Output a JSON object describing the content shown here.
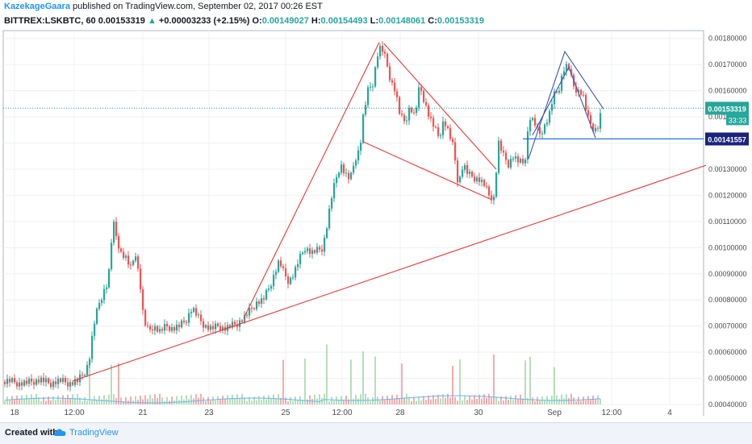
{
  "header": {
    "author": "KazekageGaara",
    "published": "published on TradingView.com, September 02, 2017 00:26 EST",
    "symbol": "BITTREX:LSKBTC, 60",
    "last": "0.00153319",
    "arrow": "▲",
    "change": "+0.00003233 (+2.15%)",
    "o_label": "O:",
    "o": "0.00149027",
    "h_label": "H:",
    "h": "0.00154493",
    "l_label": "L:",
    "l": "0.00148061",
    "c_label": "C:",
    "c": "0.00153319"
  },
  "footer": {
    "created": "Created with",
    "brand": "TradingView",
    "logo_icon": "tradingview-cloud-icon"
  },
  "colors": {
    "up": "#26a69a",
    "down": "#ef5350",
    "trend": "#e53935",
    "pattern": "#3f51b5",
    "support": "#1565c0",
    "vol_up": "#a5d6a7",
    "vol_down": "#ef9a9a"
  },
  "chart_data": {
    "type": "candlestick",
    "x_ticks": [
      "18",
      "12:00",
      "21",
      "23",
      "25",
      "12:00",
      "28",
      "30",
      "Sep",
      "12:00",
      "4"
    ],
    "y_ticks": [
      "0.00180000",
      "0.00170000",
      "0.00160000",
      "0.00150000",
      "0.00140000",
      "0.00130000",
      "0.00120000",
      "0.00110000",
      "0.00100000",
      "0.00090000",
      "0.00080000",
      "0.00070000",
      "0.00060000",
      "0.00050000",
      "0.00040000"
    ],
    "ylim": [
      0.0004,
      0.00183
    ],
    "last_price_label": "0.00153319",
    "countdown": "33:33",
    "support_label": "0.00141557",
    "grid": true,
    "path_points": [
      [
        0,
        0.000485
      ],
      [
        12,
        0.00049
      ],
      [
        24,
        0.00048
      ],
      [
        36,
        0.000485
      ],
      [
        50,
        0.000495
      ],
      [
        62,
        0.00048
      ],
      [
        74,
        0.000492
      ],
      [
        86,
        0.00048
      ],
      [
        96,
        0.00049
      ],
      [
        104,
        0.00052
      ],
      [
        110,
        0.00056
      ],
      [
        116,
        0.0007
      ],
      [
        122,
        0.00078
      ],
      [
        128,
        0.00083
      ],
      [
        134,
        0.00087
      ],
      [
        140,
        0.0011
      ],
      [
        145,
        0.00103
      ],
      [
        150,
        0.00098
      ],
      [
        156,
        0.00096
      ],
      [
        162,
        0.00092
      ],
      [
        168,
        0.00098
      ],
      [
        174,
        0.00085
      ],
      [
        178,
        0.00072
      ],
      [
        184,
        0.00068
      ],
      [
        190,
        0.0007
      ],
      [
        198,
        0.00068
      ],
      [
        206,
        0.0007
      ],
      [
        214,
        0.00069
      ],
      [
        222,
        0.0007
      ],
      [
        230,
        0.00072
      ],
      [
        238,
        0.00077
      ],
      [
        246,
        0.00073
      ],
      [
        254,
        0.0007
      ],
      [
        262,
        0.00069
      ],
      [
        270,
        0.0007
      ],
      [
        278,
        0.00069
      ],
      [
        286,
        0.0007
      ],
      [
        294,
        0.00071
      ],
      [
        302,
        0.00073
      ],
      [
        310,
        0.00076
      ],
      [
        318,
        0.00079
      ],
      [
        326,
        0.0008
      ],
      [
        334,
        0.00085
      ],
      [
        340,
        0.0009
      ],
      [
        346,
        0.00095
      ],
      [
        352,
        0.0009
      ],
      [
        358,
        0.00087
      ],
      [
        364,
        0.0009
      ],
      [
        370,
        0.00095
      ],
      [
        378,
        0.001
      ],
      [
        386,
        0.00098
      ],
      [
        394,
        0.00099
      ],
      [
        400,
        0.001
      ],
      [
        406,
        0.0011
      ],
      [
        410,
        0.00118
      ],
      [
        416,
        0.00126
      ],
      [
        422,
        0.00132
      ],
      [
        428,
        0.00128
      ],
      [
        434,
        0.00126
      ],
      [
        440,
        0.00134
      ],
      [
        446,
        0.00138
      ],
      [
        450,
        0.0015
      ],
      [
        456,
        0.0016
      ],
      [
        462,
        0.00163
      ],
      [
        468,
        0.00174
      ],
      [
        472,
        0.00177
      ],
      [
        478,
        0.00172
      ],
      [
        484,
        0.00164
      ],
      [
        490,
        0.0016
      ],
      [
        496,
        0.0015
      ],
      [
        502,
        0.00148
      ],
      [
        508,
        0.00154
      ],
      [
        514,
        0.0015
      ],
      [
        520,
        0.00162
      ],
      [
        526,
        0.00156
      ],
      [
        532,
        0.0015
      ],
      [
        538,
        0.00146
      ],
      [
        544,
        0.00142
      ],
      [
        550,
        0.00149
      ],
      [
        556,
        0.00144
      ],
      [
        562,
        0.00138
      ],
      [
        568,
        0.00124
      ],
      [
        574,
        0.00132
      ],
      [
        580,
        0.00128
      ],
      [
        586,
        0.00127
      ],
      [
        594,
        0.00126
      ],
      [
        600,
        0.00124
      ],
      [
        606,
        0.0012
      ],
      [
        612,
        0.00119
      ],
      [
        618,
        0.0014
      ],
      [
        624,
        0.00135
      ],
      [
        630,
        0.00132
      ],
      [
        636,
        0.00135
      ],
      [
        642,
        0.00133
      ],
      [
        650,
        0.00132
      ],
      [
        656,
        0.0015
      ],
      [
        662,
        0.00148
      ],
      [
        668,
        0.00143
      ],
      [
        674,
        0.00146
      ],
      [
        680,
        0.0015
      ],
      [
        686,
        0.00158
      ],
      [
        692,
        0.0016
      ],
      [
        698,
        0.00168
      ],
      [
        704,
        0.0017
      ],
      [
        710,
        0.00162
      ],
      [
        716,
        0.0016
      ],
      [
        722,
        0.00159
      ],
      [
        728,
        0.0015
      ],
      [
        734,
        0.00146
      ],
      [
        740,
        0.00145
      ],
      [
        746,
        0.001533
      ]
    ],
    "volume_spikes": [
      [
        112,
        0.46
      ],
      [
        138,
        0.42
      ],
      [
        146,
        0.38
      ],
      [
        350,
        0.42
      ],
      [
        378,
        0.46
      ],
      [
        406,
        0.66
      ],
      [
        434,
        0.44
      ],
      [
        450,
        0.58
      ],
      [
        466,
        0.55
      ],
      [
        498,
        0.38
      ],
      [
        562,
        0.44
      ],
      [
        570,
        0.46
      ],
      [
        612,
        0.58
      ],
      [
        650,
        0.42
      ],
      [
        656,
        0.46
      ],
      [
        688,
        0.4
      ]
    ],
    "annotations": {
      "uptrend_line": [
        [
          90,
          0.00049
        ],
        [
          875,
          0.001315
        ]
      ],
      "impulse_leg": [
        [
          302,
          0.00073
        ],
        [
          470,
          0.001785
        ]
      ],
      "wedge_upper": [
        [
          476,
          0.00178
        ],
        [
          615,
          0.0013
        ]
      ],
      "wedge_lower": [
        [
          450,
          0.001405
        ],
        [
          608,
          0.001185
        ]
      ],
      "pattern_up": [
        [
          655,
          0.00134
        ],
        [
          700,
          0.00175
        ],
        [
          748,
          0.00153
        ]
      ],
      "pattern_inner": [
        [
          660,
          0.00143
        ],
        [
          705,
          0.00169
        ],
        [
          738,
          0.00142
        ]
      ],
      "support_line": [
        [
          648,
          0.001416
        ],
        [
          872,
          0.001416
        ]
      ]
    }
  }
}
